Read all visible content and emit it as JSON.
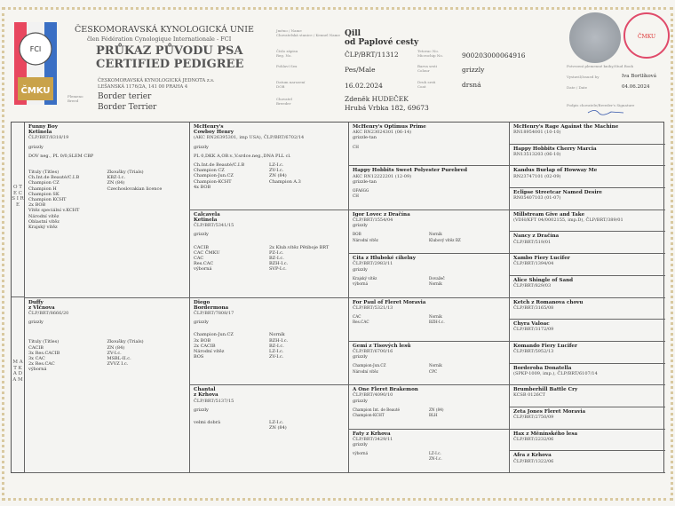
{
  "header": {
    "org_name": "ČESKOMORAVSKÁ KYNOLOGICKÁ UNIE",
    "org_member": "člen Fédération Cynologique Internationale - FCI",
    "title_cz": "PRŮKAZ PŮVODU PSA",
    "title_en": "CERTIFIED PEDIGREE",
    "issuer_line1": "ČESKOMORAVSKÁ KYNOLOGICKÁ JEDNOTA z.s.",
    "issuer_line2": "LEŠANSKÁ 1176/2A, 141 00 PRAHA 4",
    "breed_label": "Plemeno Breed",
    "breed_cz": "Border terier",
    "breed_en": "Border Terrier",
    "labels": {
      "name": "Jméno / Name",
      "kennel": "Chovatelská stanice / Kennel Name",
      "reg": "Číslo zápisu Reg. No.",
      "sex": "Pohlaví Sex",
      "dob": "Datum narození DOB",
      "breeder": "Chovatel Breeder",
      "tattoo": "Tetovac No. Microchip No.",
      "colour": "Barva srsti Colour",
      "coat": "Druh srsti Coat",
      "stud": "Potvrzení plemenné knihy/Stud Book",
      "issued": "Vystavil/Issued by",
      "date": "Date / Date",
      "signature": "Podpis chovatele/Breeder's Signature"
    },
    "dog_name": "Qill",
    "kennel_name": "od Paplové cesty",
    "reg_no": "ČLP/BRT/11312",
    "sex": "Pes/Male",
    "dob": "16.02.2024",
    "breeder_name": "Zdeněk HUDEČEK",
    "breeder_address": "Hrubá Vrbka 182, 69673",
    "microchip": "900203000064916",
    "colour": "grizzly",
    "coat": "drsná",
    "issued_by": "Iva Bortlíková",
    "issue_date": "04.06.2024",
    "logo_text": "FCI",
    "stamp_text": "Plemenná kniha ČMKU"
  },
  "side_labels": {
    "sire": "O T E C   S I R E",
    "dam": "M A T K A   D A M"
  },
  "gen1": [
    {
      "name": "Funny Boy",
      "kennel": "Ketinela",
      "reg": "ČLP/BRT/8318/19",
      "colour": "grizzly",
      "health": "DOV neg., PL 0/0,SLEM CBP",
      "left": [
        "Tituly (Titles)",
        "Ch.Int.de Beauté/C.I.B",
        "Champion CZ",
        "Champion H",
        "Champion SK",
        "Champion KCHT",
        "2x BOB",
        "Vítěz speciální v.KCHT",
        "Národní vítěz",
        "Oblastní vítěz",
        "Krajský vítěz"
      ],
      "right": [
        "Zkoušky (Trials)",
        "KBZ-I.c.",
        "ZN (84)",
        "Czechoslovakian licence"
      ]
    },
    {
      "name": "Duffy",
      "kennel": "z Vlčnova",
      "reg": "ČLP/BRT/8666/20",
      "colour": "grizzly",
      "health": "",
      "left": [
        "Tituly (Titles)",
        "CACIB",
        "3x Res.CACIB",
        "3x CAC",
        "2x Res.CAC",
        "výborná"
      ],
      "right": [
        "Zkoušky (Trials)",
        "ZN (84)",
        "ZV-I.c.",
        "MSBL-II.c.",
        "ZVVZ I.c."
      ]
    }
  ],
  "gen2": [
    {
      "name": "McHenry's",
      "kennel": "Cowboy Henry",
      "reg": "(AKC RN26395301, imp USA), ČLP/BRT/6702/14",
      "colour": "grizzly",
      "health": "PL 0,DKK A,OB.v.,V.srdce.neg.,DNA PLL cl.",
      "left": [
        "Ch.Int.de Beauté/C.I.B",
        "Champion CZ",
        "Champion-Jun.CZ",
        "Champion-KCHT",
        "4x BOB"
      ],
      "right": [
        "LZ-I.c.",
        "ZV-I.c.",
        "ZN (84)",
        "Champion A.3"
      ]
    },
    {
      "name": "Calcavela",
      "kennel": "Ketinela",
      "reg": "ČLP/BRT/5341/15",
      "colour": "grizzly",
      "health": "",
      "left": [
        "CACIB",
        "CAC ČMKU",
        "CAC",
        "Res.CAC",
        "výborná"
      ],
      "right": [
        "2x Klub.vítěz Pětiboje BRT",
        "PZ-I.c.",
        "BZ-I.c.",
        "BZH-I.c.",
        "SVP-I.c."
      ]
    },
    {
      "name": "Diego",
      "kennel": "Bordermona",
      "reg": "ČLP/BRT/7808/17",
      "colour": "grizzly",
      "health": "",
      "left": [
        "Champion-Jun.CZ",
        "3x BOB",
        "2x CACIB",
        "Národní vítěz",
        "BOS"
      ],
      "right": [
        "Norník",
        "BZH-I.c.",
        "BZ-I.c.",
        "LZ-I.c.",
        "ZV-I.c."
      ]
    },
    {
      "name": "Chantal",
      "kennel": "z Krhova",
      "reg": "ČLP/BRT/5137/15",
      "colour": "grizzly",
      "health": "",
      "left": [
        "velmi dobrá"
      ],
      "right": [
        "LZ-I.c.",
        "ZN (84)"
      ]
    }
  ],
  "gen3": [
    {
      "name": "McHenry's Optimus Prime",
      "reg": "AKC RN23024301 (06-14)",
      "colour": "grizzle-tan",
      "left": [
        "CH"
      ],
      "right": []
    },
    {
      "name": "Happy Hobbits Sweet Polyester Purebred",
      "reg": "AKC RN12222201 (12-09)",
      "colour": "grizzle-tan",
      "left": [
        "OFA6GG",
        "CH"
      ],
      "right": []
    },
    {
      "name": "Igor Lovec z Dračína",
      "reg": "ČLP/BRT/1554/04",
      "colour": "grizzly",
      "left": [
        "BOB",
        "Národní vítěz"
      ],
      "right": [
        "Norník",
        "Klubový vítěz BZ"
      ]
    },
    {
      "name": "Cita z Hluboké cihelny",
      "reg": "ČLP/BRT/2983/11",
      "colour": "grizzly",
      "left": [
        "Krajský vítěz",
        "výborná"
      ],
      "right": [
        "Dovažeč",
        "Norník"
      ]
    },
    {
      "name": "For Paul of Fleret Moravia",
      "reg": "ČLP/BRT/5321/13",
      "colour": "",
      "left": [
        "CAC",
        "Res.CAC"
      ],
      "right": [
        "Norník",
        "BZH-I.c."
      ]
    },
    {
      "name": "Gemi z Tisových lesů",
      "reg": "ČLP/BRT/6700/16",
      "colour": "grizzly",
      "left": [
        "Champion-Jun.CZ",
        "Národní vítěz"
      ],
      "right": [
        "Norník",
        "CPC"
      ]
    },
    {
      "name": "A One Fleret Brakemon",
      "reg": "ČLP/BRT/4090/10",
      "colour": "grizzly",
      "left": [
        "Champion Int. de Beauté",
        "Champion-KCHT"
      ],
      "right": [
        "ZN (84)",
        "BLH"
      ]
    },
    {
      "name": "Faty z Krhova",
      "reg": "ČLP/BRT/3429/11",
      "colour": "grizzly",
      "left": [
        "výborná"
      ],
      "right": [
        "LZ-I.c.",
        "ZN-I.c."
      ]
    }
  ],
  "gen4": [
    {
      "name": "McHenry's Rage Against the Machine",
      "reg": "RN18954001 (10-10)"
    },
    {
      "name": "Happy Hobbits Cherry Marcia",
      "reg": "RN13513203 (06-10)"
    },
    {
      "name": "Kandus Burlap of Howway Me",
      "reg": "RN23747101 (02-09)"
    },
    {
      "name": "Eclipse Streetcar Named Desire",
      "reg": "RN05407103 (01-07)"
    },
    {
      "name": "Millstream Give and Take",
      "reg": "(VDH/KFT 04/0002155, imp.D), ČLP/BRT/389/01"
    },
    {
      "name": "Nancy z Dračína",
      "reg": "ČLP/BRT/519/01"
    },
    {
      "name": "Xambo Fiery Lucifer",
      "reg": "ČLP/BRT/1394/04"
    },
    {
      "name": "Alice Shingle of Sand",
      "reg": "ČLP/BRT/829/03"
    },
    {
      "name": "Ketch z Romanova chovu",
      "reg": "ČLP/BRT/3165/08"
    },
    {
      "name": "Chyra Valoac",
      "reg": "ČLP/BRT/3172/09"
    },
    {
      "name": "Komando Fiery Lucifer",
      "reg": "ČLP/BRT/5952/13"
    },
    {
      "name": "Borderoba Donatella",
      "reg": "(SPKP-1009, imp.), ČLP/BRT/6107/14"
    },
    {
      "name": "Brumberhill Battle Cry",
      "reg": "KCSB 0126CT"
    },
    {
      "name": "Zeta Jones Fleret Moravia",
      "reg": "ČLP/BRT/2750/09"
    },
    {
      "name": "Hax z Měnínského lesa",
      "reg": "ČLP/BRT/2232/06"
    },
    {
      "name": "Afra z Krhova",
      "reg": "ČLP/BRT/1322/06"
    }
  ]
}
